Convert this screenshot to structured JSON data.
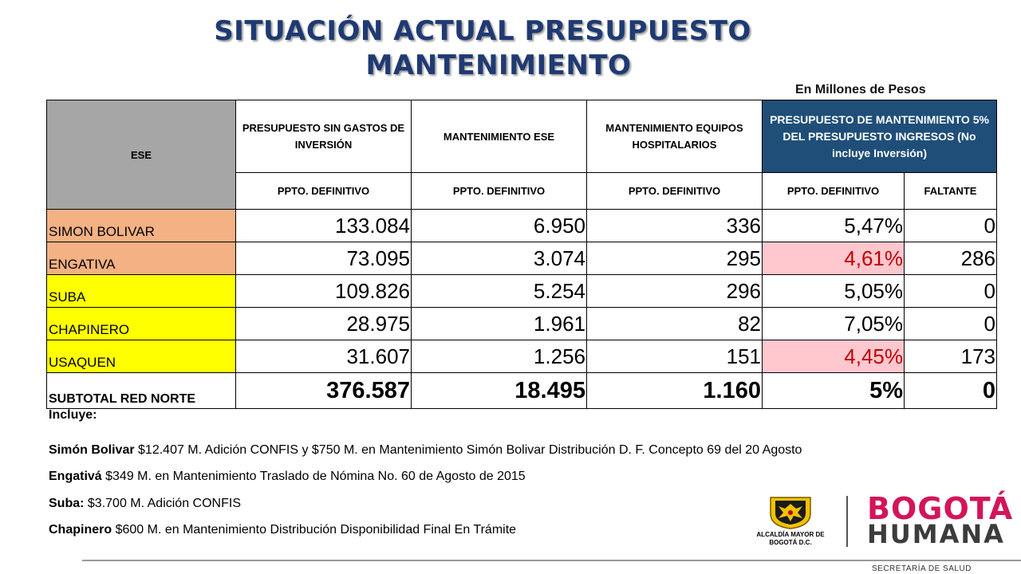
{
  "title": {
    "line1": "SITUACIÓN ACTUAL PRESUPUESTO",
    "line2": "MANTENIMIENTO"
  },
  "units": "En Millones de Pesos",
  "table": {
    "headers": {
      "ese": "ESE",
      "presupuesto": "PRESUPUESTO SIN GASTOS DE INVERSIÓN",
      "mant_ese": "MANTENIMIENTO ESE",
      "mant_equipos": "MANTENIMIENTO EQUIPOS HOSPITALARIOS",
      "pct": "PRESUPUESTO DE MANTENIMIENTO 5% DEL PRESUPUESTO INGRESOS (No incluye Inversión)"
    },
    "subheaders": [
      "PPTO. DEFINITIVO",
      "PPTO. DEFINITIVO",
      "PPTO. DEFINITIVO",
      "PPTO. DEFINITIVO",
      "FALTANTE"
    ],
    "rows": [
      {
        "name": "SIMON BOLIVAR",
        "presupuesto": "133.084",
        "mant_ese": "6.950",
        "mant_equipos": "336",
        "pct": "5,47%",
        "faltante": "0"
      },
      {
        "name": "ENGATIVA",
        "presupuesto": "73.095",
        "mant_ese": "3.074",
        "mant_equipos": "295",
        "pct": "4,61%",
        "faltante": "286"
      },
      {
        "name": "SUBA",
        "presupuesto": "109.826",
        "mant_ese": "5.254",
        "mant_equipos": "296",
        "pct": "5,05%",
        "faltante": "0"
      },
      {
        "name": "CHAPINERO",
        "presupuesto": "28.975",
        "mant_ese": "1.961",
        "mant_equipos": "82",
        "pct": "7,05%",
        "faltante": "0"
      },
      {
        "name": "USAQUEN",
        "presupuesto": "31.607",
        "mant_ese": "1.256",
        "mant_equipos": "151",
        "pct": "4,45%",
        "faltante": "173"
      }
    ],
    "total": {
      "name": "SUBTOTAL RED NORTE",
      "presupuesto": "376.587",
      "mant_ese": "18.495",
      "mant_equipos": "1.160",
      "pct": "5%",
      "faltante": "0"
    }
  },
  "notes": {
    "intro": "Incluye:",
    "n1_label": "Simón Bolivar",
    "n1_text": " $12.407 M. Adición CONFIS y $750 M. en Mantenimiento Simón Bolivar Distribución D. F.  Concepto 69 del 20 Agosto",
    "n2_label": "Engativá",
    "n2_text": " $349 M. en Mantenimiento Traslado de Nómina No. 60 de Agosto de 2015",
    "n3_label": "Suba:",
    "n3_text": " $3.700 M. Adición CONFIS",
    "n4_label": "Chapinero",
    "n4_text": " $600 M. en Mantenimiento Distribución Disponibilidad Final En Trámite"
  },
  "logos": {
    "alcaldia": "ALCALDÍA MAYOR DE BOGOTÁ D.C.",
    "bogota": "BOGOTÁ",
    "humana": "HUMANA"
  },
  "footer": "SECRETARÍA DE SALUD",
  "colors": {
    "title": "#1f3a73",
    "header_blue": "#1f4e79",
    "orange": "#f4b183",
    "yellow": "#ffff00",
    "pink": "#ffc7ce",
    "brand_magenta": "#d4145a"
  }
}
